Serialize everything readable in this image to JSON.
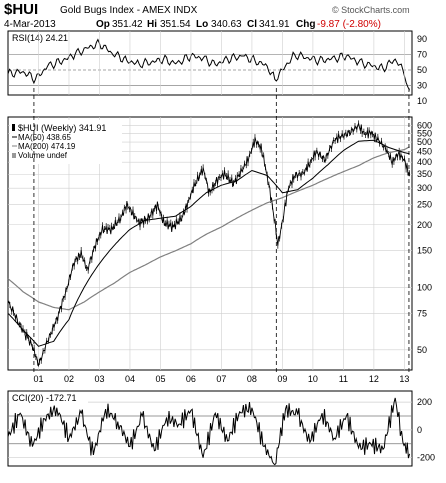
{
  "header": {
    "symbol": "$HUI",
    "name": "Gold Bugs Index - AMEX INDX",
    "date": "4-Mar-2013",
    "open_label": "Op",
    "open": "351.42",
    "high_label": "Hi",
    "high": "351.54",
    "low_label": "Lo",
    "low": "340.63",
    "close_label": "Cl",
    "close": "341.91",
    "chg_label": "Chg",
    "chg": "-9.87 (-2.80%)",
    "chg_color": "#d00000",
    "watermark": "© StockCharts.com"
  },
  "rsi_panel": {
    "title": "RSI(14) 24.21",
    "colors": {
      "line": "#000000",
      "ref": "#808080"
    }
  },
  "price_panel": {
    "legend": [
      {
        "label": "$HUI (Weekly) 341.91",
        "icon": "bar-swatch"
      },
      {
        "label": "MA(50) 438.65",
        "icon": "line-swatch"
      },
      {
        "label": "MA(200) 474.19",
        "icon": "line-swatch"
      },
      {
        "label": "Volume undef",
        "icon": "volume-swatch"
      }
    ],
    "colors": {
      "price": "#000000",
      "ma50": "#000000",
      "ma200": "#808080"
    }
  },
  "cci_panel": {
    "title": "CCI(20) -172.71"
  },
  "chart_data": [
    {
      "type": "line",
      "title": "RSI(14) 24.21",
      "ylim": [
        18,
        100
      ],
      "y_ticks": [
        "90",
        "70",
        "50",
        "30",
        "10"
      ],
      "reference_lines": [
        70,
        50,
        30
      ],
      "x": [
        2000.0,
        2000.5,
        2000.9,
        2001.3,
        2001.8,
        2002.2,
        2002.6,
        2003.0,
        2003.4,
        2003.9,
        2004.3,
        2004.7,
        2005.1,
        2005.5,
        2006.0,
        2006.4,
        2006.8,
        2007.2,
        2007.7,
        2008.1,
        2008.5,
        2008.75,
        2009.0,
        2009.4,
        2009.8,
        2010.2,
        2010.6,
        2011.1,
        2011.5,
        2011.9,
        2012.3,
        2012.7,
        2012.95,
        2013.17
      ],
      "values": [
        45,
        48,
        38,
        55,
        62,
        70,
        78,
        84,
        72,
        62,
        58,
        60,
        64,
        58,
        68,
        65,
        57,
        64,
        68,
        62,
        55,
        38,
        50,
        70,
        66,
        62,
        64,
        68,
        60,
        56,
        52,
        64,
        50,
        24
      ]
    },
    {
      "type": "line",
      "title": "$HUI (Weekly) 341.91",
      "x_ticks": [
        "01",
        "02",
        "03",
        "04",
        "05",
        "06",
        "07",
        "08",
        "09",
        "10",
        "11",
        "12",
        "13"
      ],
      "y_ticks": [
        50,
        75,
        100,
        150,
        200,
        250,
        300,
        350,
        400,
        450,
        500,
        550,
        600
      ],
      "ylim": [
        40,
        660
      ],
      "series": [
        {
          "name": "$HUI (Weekly) 341.91",
          "x": [
            2000.0,
            2000.4,
            2000.8,
            2001.0,
            2001.3,
            2001.6,
            2001.9,
            2002.2,
            2002.4,
            2002.6,
            2002.9,
            2003.1,
            2003.4,
            2003.7,
            2003.9,
            2004.1,
            2004.3,
            2004.6,
            2004.9,
            2005.1,
            2005.4,
            2005.7,
            2005.9,
            2006.1,
            2006.4,
            2006.6,
            2006.9,
            2007.1,
            2007.4,
            2007.7,
            2007.9,
            2008.1,
            2008.3,
            2008.5,
            2008.7,
            2008.85,
            2009.0,
            2009.2,
            2009.4,
            2009.7,
            2009.9,
            2010.1,
            2010.4,
            2010.7,
            2010.9,
            2011.2,
            2011.5,
            2011.7,
            2011.9,
            2012.1,
            2012.4,
            2012.6,
            2012.8,
            2013.0,
            2013.17
          ],
          "values": [
            85,
            65,
            52,
            42,
            55,
            70,
            95,
            135,
            145,
            120,
            165,
            190,
            190,
            215,
            250,
            225,
            205,
            215,
            250,
            205,
            195,
            215,
            255,
            305,
            370,
            285,
            335,
            350,
            315,
            370,
            420,
            510,
            470,
            340,
            230,
            160,
            205,
            300,
            345,
            355,
            395,
            450,
            410,
            510,
            530,
            555,
            600,
            545,
            555,
            520,
            460,
            400,
            440,
            410,
            341.91
          ]
        },
        {
          "name": "MA(50) 438.65",
          "x": [
            2000.0,
            2000.5,
            2001.0,
            2001.5,
            2002.0,
            2002.5,
            2003.0,
            2003.5,
            2004.0,
            2004.5,
            2005.0,
            2005.5,
            2006.0,
            2006.5,
            2007.0,
            2007.5,
            2008.0,
            2008.5,
            2009.0,
            2009.5,
            2010.0,
            2010.5,
            2011.0,
            2011.5,
            2012.0,
            2012.5,
            2013.0,
            2013.17
          ],
          "values": [
            75,
            62,
            52,
            55,
            70,
            100,
            130,
            160,
            190,
            210,
            215,
            220,
            245,
            285,
            310,
            325,
            365,
            345,
            285,
            295,
            335,
            390,
            455,
            505,
            510,
            470,
            445,
            438.65
          ]
        },
        {
          "name": "MA(200) 474.19",
          "x": [
            2000.0,
            2000.5,
            2001.0,
            2001.5,
            2002.0,
            2002.5,
            2003.0,
            2003.5,
            2004.0,
            2004.5,
            2005.0,
            2005.5,
            2006.0,
            2006.5,
            2007.0,
            2007.5,
            2008.0,
            2008.5,
            2009.0,
            2009.5,
            2010.0,
            2010.5,
            2011.0,
            2011.5,
            2012.0,
            2012.5,
            2013.0,
            2013.17
          ],
          "values": [
            110,
            95,
            85,
            80,
            78,
            85,
            95,
            105,
            118,
            128,
            140,
            150,
            162,
            180,
            195,
            215,
            235,
            255,
            270,
            290,
            310,
            335,
            360,
            385,
            420,
            445,
            460,
            474.19
          ]
        }
      ]
    },
    {
      "type": "line",
      "title": "CCI(20) -172.71",
      "ylim": [
        -260,
        280
      ],
      "y_ticks": [
        "200",
        "0",
        "-200"
      ],
      "reference_lines": [
        100,
        -100
      ],
      "x": [
        2000.0,
        2000.4,
        2000.8,
        2001.2,
        2001.6,
        2002.0,
        2002.4,
        2002.8,
        2003.2,
        2003.6,
        2004.0,
        2004.4,
        2004.8,
        2005.2,
        2005.6,
        2006.0,
        2006.4,
        2006.8,
        2007.2,
        2007.6,
        2008.0,
        2008.4,
        2008.75,
        2009.1,
        2009.5,
        2009.9,
        2010.3,
        2010.7,
        2011.1,
        2011.5,
        2011.9,
        2012.3,
        2012.7,
        2012.95,
        2013.17
      ],
      "values": [
        -50,
        120,
        -120,
        80,
        160,
        -60,
        120,
        -180,
        150,
        60,
        -120,
        100,
        -150,
        90,
        40,
        140,
        -200,
        120,
        -80,
        130,
        160,
        -120,
        -250,
        150,
        110,
        -90,
        120,
        -60,
        100,
        -130,
        -100,
        -140,
        230,
        -90,
        -172.71
      ]
    }
  ]
}
